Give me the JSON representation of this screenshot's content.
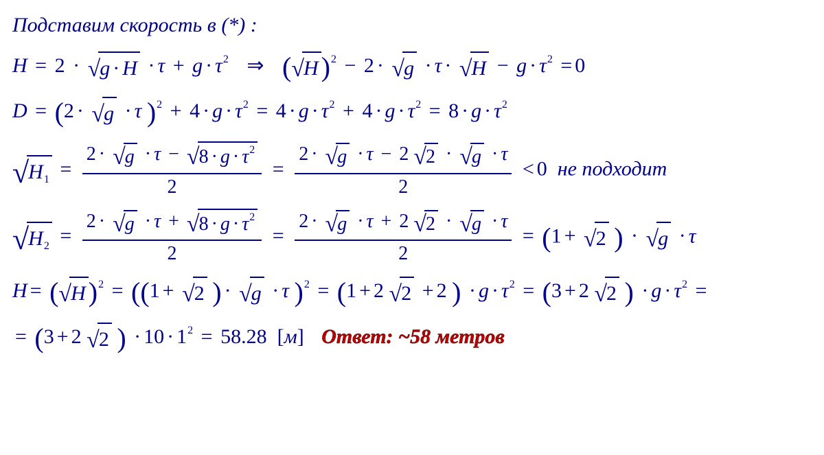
{
  "text": {
    "intro": "Подставим скорость в (*) :",
    "reject": "не подходит",
    "answer_label": "Ответ: ~58 метров"
  },
  "sym": {
    "H": "H",
    "D": "D",
    "g": "g",
    "tau": "τ",
    "H1": "H",
    "H2": "H",
    "sub1": "1",
    "sub2": "2",
    "m": "м"
  },
  "values": {
    "two": "2",
    "four": "4",
    "eight": "8",
    "zero": "0",
    "one": "1",
    "three": "3",
    "ten": "10",
    "result": "58.28"
  },
  "colors": {
    "text": "#00008B",
    "answer": "#c00000",
    "background": "#ffffff"
  }
}
